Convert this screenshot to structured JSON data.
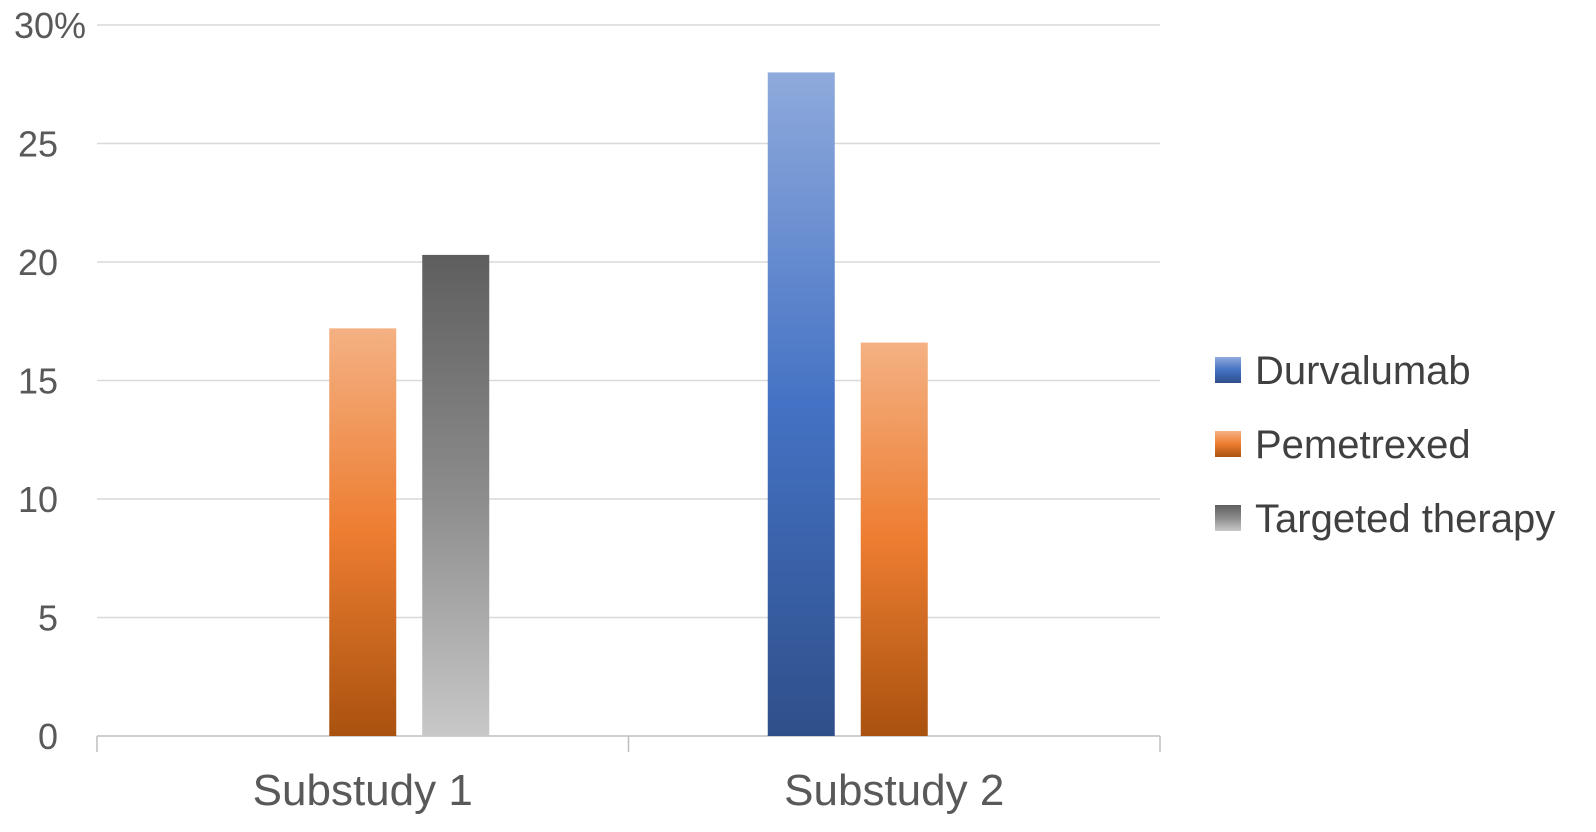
{
  "chart_data": {
    "type": "bar",
    "categories": [
      "Substudy 1",
      "Substudy 2"
    ],
    "series": [
      {
        "name": "Durvalumab",
        "values": [
          0,
          28
        ],
        "color": "#4472C4"
      },
      {
        "name": "Pemetrexed",
        "values": [
          17.2,
          16.6
        ],
        "color": "#ED7D31"
      },
      {
        "name": "Targeted therapy",
        "values": [
          20.3,
          0
        ],
        "color": "#8C8C8C"
      }
    ],
    "y_ticks": [
      "0",
      "5",
      "10",
      "15",
      "20",
      "25",
      "30%"
    ],
    "ylim": [
      0,
      30
    ],
    "grid": true,
    "legend_position": "right",
    "title": "",
    "xlabel": "",
    "ylabel": ""
  }
}
